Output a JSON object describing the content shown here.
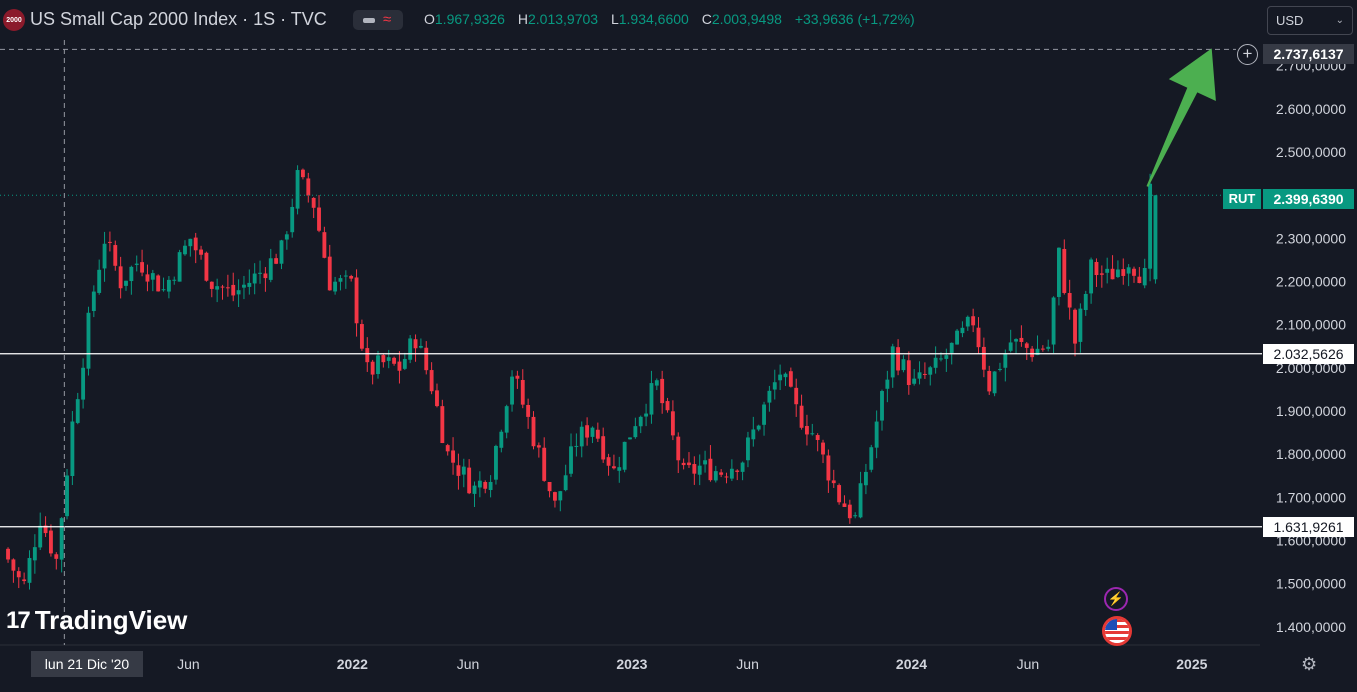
{
  "header": {
    "symbol_badge": "2000",
    "title": "US Small Cap 2000 Index · 1S · TVC",
    "ohlc": [
      {
        "key": "O",
        "value": "1.967,9326"
      },
      {
        "key": "H",
        "value": "2.013,9703"
      },
      {
        "key": "L",
        "value": "1.934,6600"
      },
      {
        "key": "C",
        "value": "2.003,9498"
      }
    ],
    "change": "+33,9636 (+1,72%)"
  },
  "currency_select": {
    "value": "USD"
  },
  "crosshair_price": "2.737,6137",
  "last_price": {
    "symbol": "RUT",
    "value": "2.399,6390"
  },
  "horizontal_lines": [
    {
      "value": 2032.5626,
      "label": "2.032,5626"
    },
    {
      "value": 1631.9261,
      "label": "1.631,9261"
    }
  ],
  "crosshair_date": "lun 21 Dic '20",
  "logo": {
    "mark": "17",
    "text": "TradingView"
  },
  "colors": {
    "up": "#089981",
    "down": "#f23645",
    "arrow": "#4caf50",
    "background": "#151924"
  },
  "icons": [
    "plus-circle-icon",
    "chevron-down-icon",
    "lightning-icon",
    "us-flag-icon",
    "gear-icon",
    "eye-toggle-icon"
  ],
  "chart_data": {
    "type": "candlestick",
    "y_axis": {
      "range": [
        1358,
        2852
      ],
      "ticks": [
        {
          "value": 1400,
          "label": "1.400,0000"
        },
        {
          "value": 1500,
          "label": "1.500,0000"
        },
        {
          "value": 1600,
          "label": "1.600,0000"
        },
        {
          "value": 1700,
          "label": "1.700,0000"
        },
        {
          "value": 1800,
          "label": "1.800,0000"
        },
        {
          "value": 1900,
          "label": "1.900,0000"
        },
        {
          "value": 2000,
          "label": "2.000,0000"
        },
        {
          "value": 2100,
          "label": "2.100,0000"
        },
        {
          "value": 2200,
          "label": "2.200,0000"
        },
        {
          "value": 2300,
          "label": "2.300,0000"
        },
        {
          "value": 2400,
          "label": "2.400,0000"
        },
        {
          "value": 2500,
          "label": "2.500,0000"
        },
        {
          "value": 2600,
          "label": "2.600,0000"
        },
        {
          "value": 2700,
          "label": "2.700,0000"
        }
      ]
    },
    "x_axis": {
      "range": [
        "2020-09-28",
        "2025-03-31"
      ],
      "ticks": [
        {
          "date": "2021-06-01",
          "label": "Jun"
        },
        {
          "date": "2022-01-01",
          "label": "2022"
        },
        {
          "date": "2022-06-01",
          "label": "Jun"
        },
        {
          "date": "2023-01-01",
          "label": "2023"
        },
        {
          "date": "2023-06-01",
          "label": "Jun"
        },
        {
          "date": "2024-01-01",
          "label": "2024"
        },
        {
          "date": "2024-06-01",
          "label": "Jun"
        },
        {
          "date": "2025-01-01",
          "label": "2025"
        }
      ]
    },
    "close_path": [
      [
        "2020-10-05",
        1580
      ],
      [
        "2020-11-01",
        1490
      ],
      [
        "2020-11-23",
        1655
      ],
      [
        "2020-12-14",
        1555
      ],
      [
        "2021-01-04",
        1870
      ],
      [
        "2021-02-01",
        2180
      ],
      [
        "2021-02-15",
        2300
      ],
      [
        "2021-03-08",
        2200
      ],
      [
        "2021-04-01",
        2250
      ],
      [
        "2021-05-03",
        2180
      ],
      [
        "2021-06-07",
        2300
      ],
      [
        "2021-07-05",
        2200
      ],
      [
        "2021-08-02",
        2170
      ],
      [
        "2021-09-06",
        2220
      ],
      [
        "2021-10-04",
        2270
      ],
      [
        "2021-10-25",
        2440
      ],
      [
        "2021-11-15",
        2380
      ],
      [
        "2021-12-06",
        2200
      ],
      [
        "2022-01-03",
        2190
      ],
      [
        "2022-01-24",
        1990
      ],
      [
        "2022-02-14",
        2010
      ],
      [
        "2022-03-07",
        2000
      ],
      [
        "2022-03-28",
        2070
      ],
      [
        "2022-04-18",
        1960
      ],
      [
        "2022-05-09",
        1800
      ],
      [
        "2022-06-13",
        1720
      ],
      [
        "2022-07-04",
        1760
      ],
      [
        "2022-08-01",
        1990
      ],
      [
        "2022-08-22",
        1880
      ],
      [
        "2022-09-26",
        1680
      ],
      [
        "2022-10-24",
        1830
      ],
      [
        "2022-11-14",
        1870
      ],
      [
        "2022-12-12",
        1760
      ],
      [
        "2023-01-09",
        1880
      ],
      [
        "2023-02-06",
        1960
      ],
      [
        "2023-03-13",
        1750
      ],
      [
        "2023-04-03",
        1770
      ],
      [
        "2023-05-01",
        1760
      ],
      [
        "2023-05-29",
        1790
      ],
      [
        "2023-06-19",
        1880
      ],
      [
        "2023-07-17",
        1990
      ],
      [
        "2023-08-07",
        1900
      ],
      [
        "2023-08-28",
        1850
      ],
      [
        "2023-10-02",
        1700
      ],
      [
        "2023-10-23",
        1650
      ],
      [
        "2023-11-13",
        1820
      ],
      [
        "2023-12-11",
        2040
      ],
      [
        "2024-01-08",
        1960
      ],
      [
        "2024-02-05",
        2000
      ],
      [
        "2024-03-04",
        2060
      ],
      [
        "2024-03-25",
        2110
      ],
      [
        "2024-04-15",
        1960
      ],
      [
        "2024-05-13",
        2060
      ],
      [
        "2024-06-10",
        2040
      ],
      [
        "2024-07-01",
        2050
      ],
      [
        "2024-07-15",
        2260
      ],
      [
        "2024-08-05",
        2060
      ],
      [
        "2024-08-26",
        2230
      ],
      [
        "2024-09-16",
        2210
      ],
      [
        "2024-10-14",
        2250
      ],
      [
        "2024-11-04",
        2210
      ],
      [
        "2024-11-11",
        2400
      ]
    ],
    "last_candle": {
      "date": "2024-11-11",
      "open": 2205,
      "high": 2400,
      "low": 2195,
      "close": 2399.639
    },
    "annotations": [
      {
        "type": "arrow",
        "from": [
          "2024-11-04",
          2420
        ],
        "to": [
          "2025-01-27",
          2740
        ]
      }
    ],
    "crosshair": {
      "date": "2020-12-21",
      "value": 2737.6137
    }
  }
}
